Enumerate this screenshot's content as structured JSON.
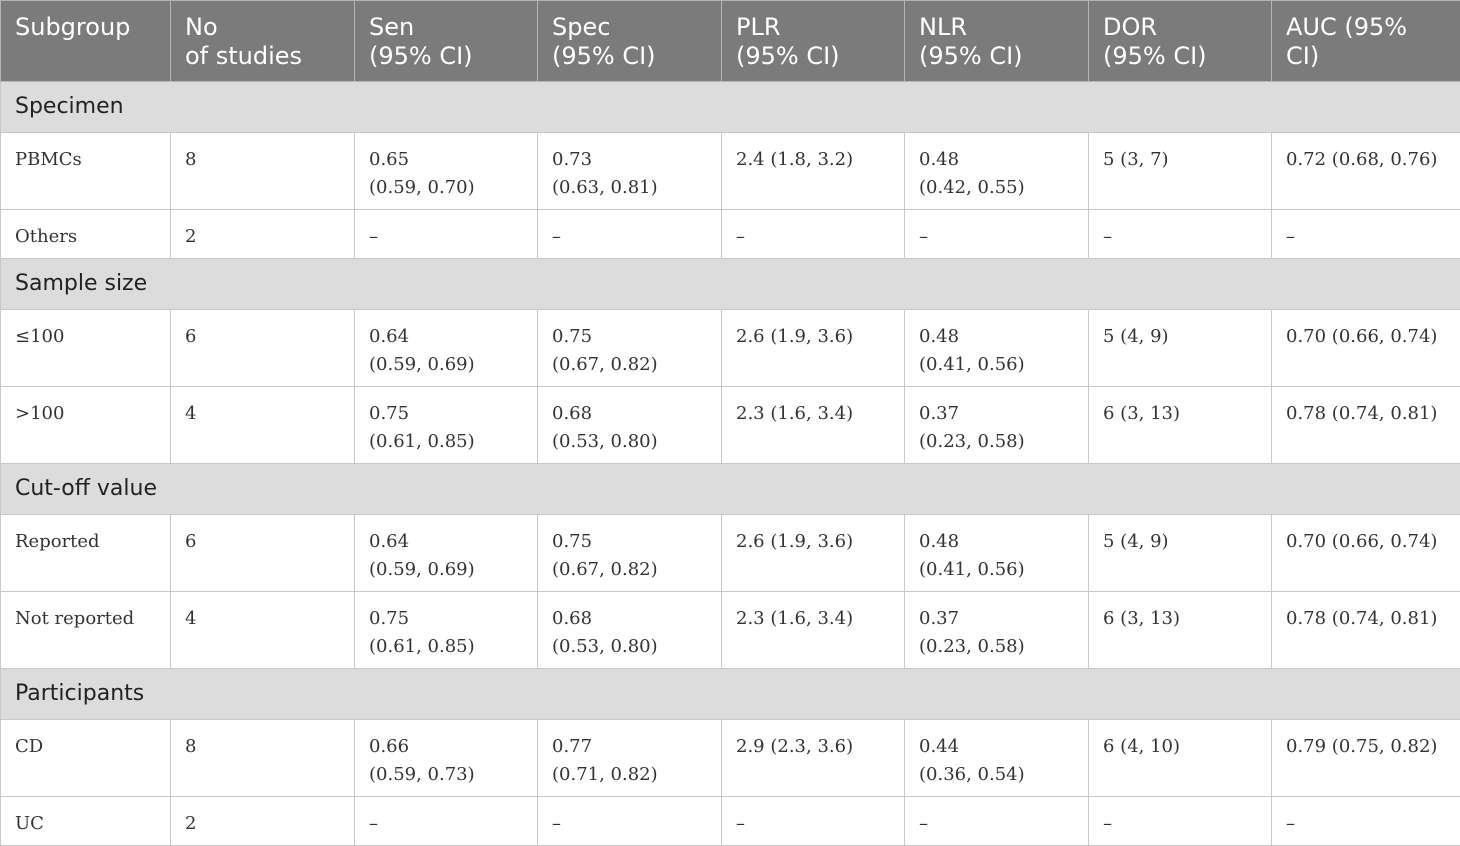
{
  "headers": [
    "Subgroup",
    "No\nof studies",
    "Sen\n(95% CI)",
    "Spec\n(95% CI)",
    "PLR\n(95% CI)",
    "NLR\n(95% CI)",
    "DOR\n(95% CI)",
    "AUC (95% CI)"
  ],
  "groups": [
    {
      "title": "Specimen",
      "rows": [
        [
          "PBMCs",
          "8",
          "0.65\n(0.59, 0.70)",
          "0.73\n(0.63, 0.81)",
          "2.4 (1.8, 3.2)",
          "0.48\n(0.42, 0.55)",
          "5 (3, 7)",
          "0.72 (0.68, 0.76)"
        ],
        [
          "Others",
          "2",
          "–",
          "–",
          "–",
          "–",
          "–",
          "–"
        ]
      ]
    },
    {
      "title": "Sample size",
      "rows": [
        [
          "≤100",
          "6",
          "0.64\n(0.59, 0.69)",
          "0.75\n(0.67, 0.82)",
          "2.6 (1.9, 3.6)",
          "0.48\n(0.41, 0.56)",
          "5 (4, 9)",
          "0.70 (0.66, 0.74)"
        ],
        [
          ">100",
          "4",
          "0.75\n(0.61, 0.85)",
          "0.68\n(0.53, 0.80)",
          "2.3 (1.6, 3.4)",
          "0.37\n(0.23, 0.58)",
          "6 (3, 13)",
          "0.78 (0.74, 0.81)"
        ]
      ]
    },
    {
      "title": "Cut-off value",
      "rows": [
        [
          "Reported",
          "6",
          "0.64\n(0.59, 0.69)",
          "0.75\n(0.67, 0.82)",
          "2.6 (1.9, 3.6)",
          "0.48\n(0.41, 0.56)",
          "5 (4, 9)",
          "0.70 (0.66, 0.74)"
        ],
        [
          "Not reported",
          "4",
          "0.75\n(0.61, 0.85)",
          "0.68\n(0.53, 0.80)",
          "2.3 (1.6, 3.4)",
          "0.37\n(0.23, 0.58)",
          "6 (3, 13)",
          "0.78 (0.74, 0.81)"
        ]
      ]
    },
    {
      "title": "Participants",
      "rows": [
        [
          "CD",
          "8",
          "0.66\n(0.59, 0.73)",
          "0.77\n(0.71, 0.82)",
          "2.9 (2.3, 3.6)",
          "0.44\n(0.36, 0.54)",
          "6 (4, 10)",
          "0.79 (0.75, 0.82)"
        ],
        [
          "UC",
          "2",
          "–",
          "–",
          "–",
          "–",
          "–",
          "–"
        ]
      ]
    }
  ]
}
